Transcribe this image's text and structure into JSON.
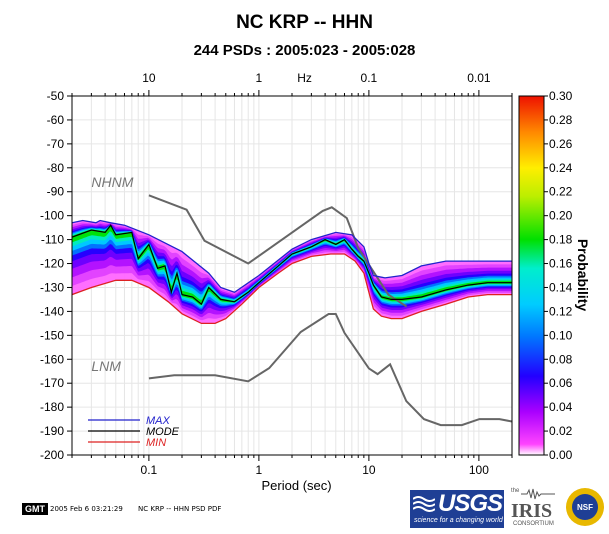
{
  "title": "NC KRP -- HHN",
  "subtitle": "244 PSDs : 2005:023 - 2005:028",
  "footer": {
    "gmt_label": "GMT",
    "timestamp": "2005 Feb  6 03:21:29",
    "caption": "NC KRP -- HHN PSD PDF"
  },
  "logos": {
    "usgs_name": "USGS",
    "usgs_tagline": "science for a changing world",
    "iris_prefix": "the",
    "iris_name": "IRIS",
    "iris_sub": "CONSORTIUM",
    "nsf_name": "NSF"
  },
  "chart_data": {
    "type": "heatmap",
    "title": "NC KRP -- HHN",
    "subtitle": "244 PSDs : 2005:023 - 2005:028",
    "xlabel": "Period (sec)",
    "x_scale": "log",
    "xlim": [
      0.02,
      200
    ],
    "x_ticks": [
      {
        "value": 0.1,
        "label": "0.1"
      },
      {
        "value": 1,
        "label": "1"
      },
      {
        "value": 10,
        "label": "10"
      },
      {
        "value": 100,
        "label": "100"
      }
    ],
    "top_axis_label": "Hz",
    "top_ticks": [
      {
        "period": 0.1,
        "label": "10"
      },
      {
        "period": 1,
        "label": "1"
      },
      {
        "period": 10,
        "label": "0.1"
      },
      {
        "period": 100,
        "label": "0.01"
      }
    ],
    "ylim": [
      -200,
      -50
    ],
    "y_ticks": [
      -50,
      -60,
      -70,
      -80,
      -90,
      -100,
      -110,
      -120,
      -130,
      -140,
      -150,
      -160,
      -170,
      -180,
      -190,
      -200
    ],
    "colorbar": {
      "label": "Probability",
      "range": [
        0,
        0.3
      ],
      "ticks": [
        "0.00",
        "0.02",
        "0.04",
        "0.06",
        "0.08",
        "0.10",
        "0.12",
        "0.14",
        "0.16",
        "0.18",
        "0.20",
        "0.22",
        "0.24",
        "0.26",
        "0.28",
        "0.30"
      ]
    },
    "legend": {
      "placement": "bottom-left",
      "entries": [
        {
          "label": "MAX",
          "color": "#2222cc"
        },
        {
          "label": "MODE",
          "color": "#000000"
        },
        {
          "label": "MIN",
          "color": "#dd2222"
        }
      ]
    },
    "annotations": [
      {
        "text": "NHNM",
        "period": 0.03,
        "db": -88
      },
      {
        "text": "LNM",
        "period": 0.03,
        "db": -165
      }
    ],
    "nhnm": {
      "color": "#666666",
      "x": [
        0.1,
        0.22,
        0.32,
        0.8,
        3.8,
        4.6,
        6.3,
        8.0,
        15,
        22
      ],
      "y": [
        -91.5,
        -97.5,
        -110.5,
        -120,
        -98,
        -96.5,
        -101,
        -113.5,
        -133,
        -138
      ]
    },
    "nlnm": {
      "color": "#666666",
      "x": [
        0.1,
        0.17,
        0.4,
        0.8,
        1.24,
        2.4,
        4.3,
        5.0,
        6.0,
        10.0,
        12.0,
        15.6,
        21.9,
        31.6,
        45,
        70,
        101,
        154,
        200
      ],
      "y": [
        -168,
        -166.7,
        -166.7,
        -169.2,
        -163.7,
        -148.6,
        -141.1,
        -141.1,
        -149,
        -163.8,
        -166.2,
        -162.1,
        -177.5,
        -185,
        -187.5,
        -187.5,
        -185,
        -185,
        -186
      ]
    },
    "max_curve": {
      "x": [
        0.02,
        0.025,
        0.033,
        0.036,
        0.045,
        0.06,
        0.1,
        0.2,
        0.35,
        0.45,
        0.6,
        1.0,
        2.0,
        3.0,
        5.0,
        7.0,
        9.0,
        10.0,
        11.0,
        14.0,
        20.0,
        30.0,
        50.0,
        80.0,
        120.0,
        200.0
      ],
      "y": [
        -103,
        -102,
        -103,
        -102,
        -103,
        -104,
        -108,
        -115,
        -124,
        -130,
        -132,
        -125,
        -114,
        -110,
        -107,
        -108,
        -113,
        -120,
        -125,
        -126,
        -125,
        -121,
        -119,
        -119,
        -119,
        -119
      ]
    },
    "mode_curve": {
      "x": [
        0.02,
        0.03,
        0.04,
        0.045,
        0.05,
        0.07,
        0.08,
        0.1,
        0.12,
        0.14,
        0.16,
        0.18,
        0.2,
        0.25,
        0.3,
        0.35,
        0.45,
        0.6,
        0.8,
        1.0,
        1.5,
        2.0,
        3.0,
        4.0,
        5.0,
        6.0,
        7.0,
        8.0,
        9.0,
        10.0,
        11.0,
        13.0,
        16.0,
        20.0,
        30.0,
        50.0,
        80.0,
        120.0,
        200.0
      ],
      "y": [
        -109,
        -106,
        -107,
        -104,
        -108,
        -107,
        -118,
        -112,
        -122,
        -121,
        -132,
        -124,
        -133,
        -134,
        -137,
        -130,
        -135,
        -136,
        -132,
        -128,
        -121,
        -116,
        -113,
        -110,
        -112,
        -110,
        -114,
        -117,
        -119,
        -124,
        -129,
        -134,
        -135,
        -135,
        -134,
        -131,
        -129,
        -128,
        -128
      ]
    },
    "min_curve": {
      "x": [
        0.02,
        0.03,
        0.05,
        0.07,
        0.1,
        0.15,
        0.2,
        0.3,
        0.4,
        0.5,
        0.7,
        1.0,
        1.5,
        2.0,
        3.0,
        4.5,
        6.0,
        7.5,
        9.0,
        10.0,
        11.0,
        13.0,
        16.0,
        20.0,
        30.0,
        50.0,
        80.0,
        120.0,
        200.0
      ],
      "y": [
        -133,
        -130,
        -127,
        -127,
        -130,
        -136,
        -141,
        -145,
        -145,
        -143,
        -137,
        -130,
        -124,
        -120,
        -117,
        -116,
        -116,
        -119,
        -124,
        -132,
        -139,
        -142,
        -143,
        -143,
        -140,
        -137,
        -134,
        -133,
        -133
      ]
    }
  }
}
